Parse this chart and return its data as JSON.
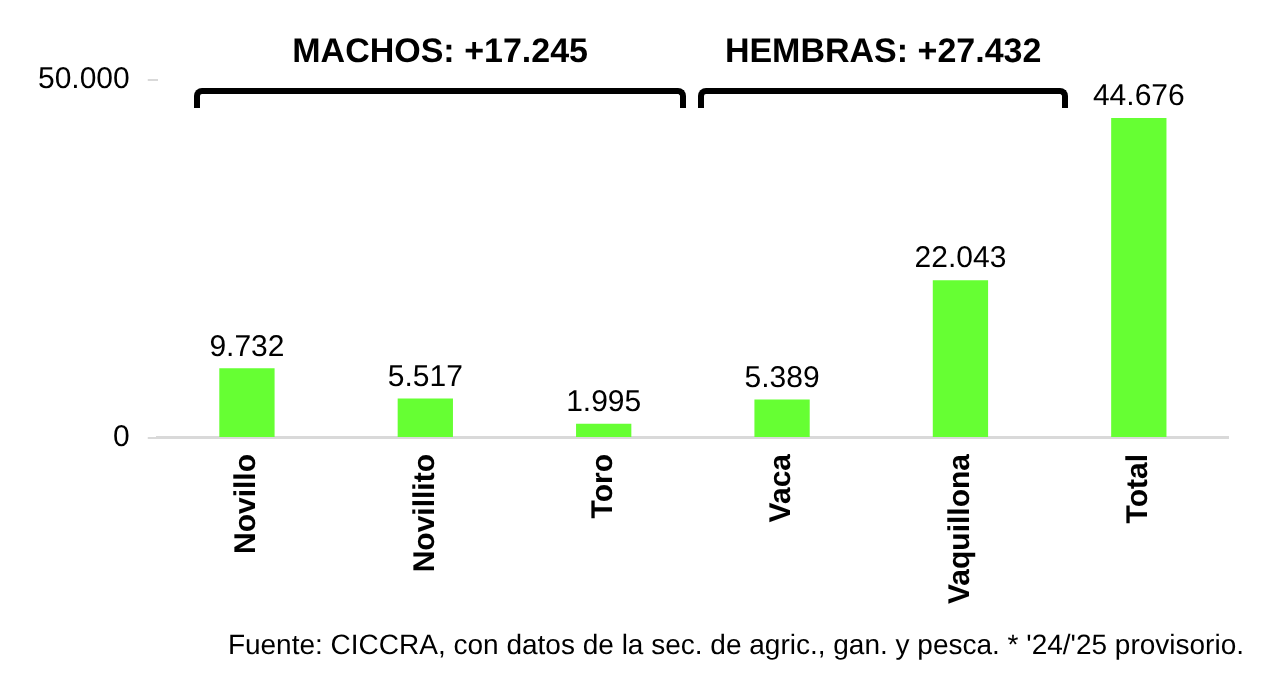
{
  "chart_data": {
    "type": "bar",
    "categories": [
      "Novillo",
      "Novillito",
      "Toro",
      "Vaca",
      "Vaquillona",
      "Total"
    ],
    "values": [
      9732,
      5517,
      1995,
      5389,
      22043,
      44676
    ],
    "value_labels": [
      "9.732",
      "5.517",
      "1.995",
      "5.389",
      "22.043",
      "44.676"
    ],
    "color": "#66ff33",
    "ylim": [
      0,
      50000
    ],
    "yticks": [
      0,
      {
        "value": 50000,
        "label": "50.000"
      }
    ],
    "grid": false,
    "legend": false,
    "annotations": [
      "MACHOS: +17.245",
      "HEMBRAS: +27.432",
      "Fuente: CICCRA, con datos de la sec. de agric., gan. y pesca. * '24/'25 provisorio."
    ]
  }
}
